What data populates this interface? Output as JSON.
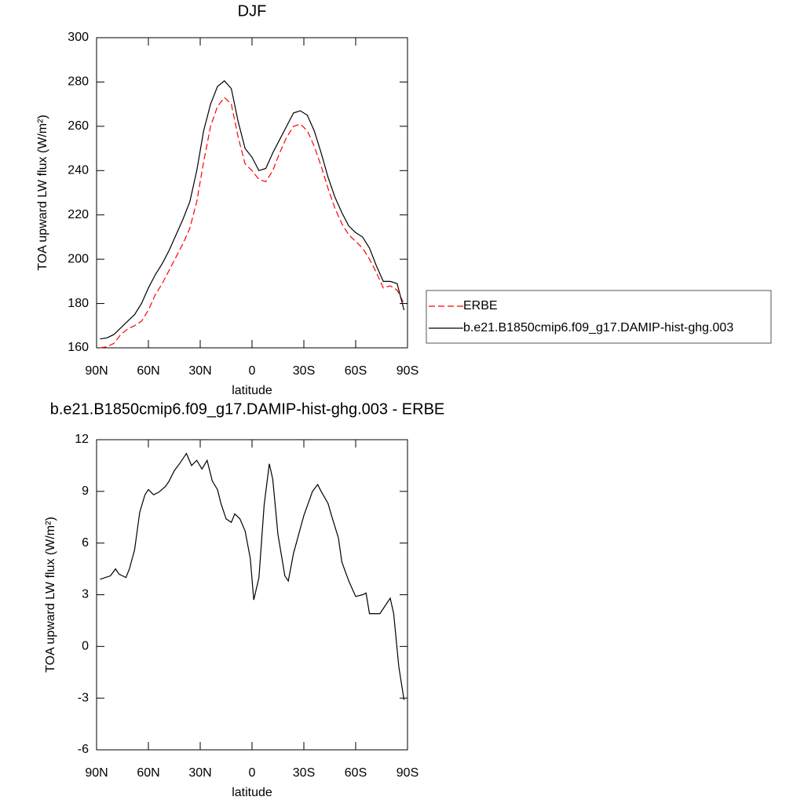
{
  "chart_data": [
    {
      "type": "line",
      "title": "DJF",
      "xlabel": "latitude",
      "ylabel": "TOA upward LW flux (W/m²)",
      "x": [
        88,
        84,
        80,
        76,
        72,
        68,
        64,
        60,
        56,
        52,
        48,
        44,
        40,
        36,
        32,
        28,
        24,
        20,
        16,
        12,
        8,
        4,
        0,
        -4,
        -8,
        -12,
        -16,
        -20,
        -24,
        -28,
        -32,
        -36,
        -40,
        -44,
        -48,
        -52,
        -56,
        -60,
        -64,
        -68,
        -72,
        -76,
        -80,
        -84,
        -88
      ],
      "series": [
        {
          "name": "ERBE",
          "color": "#ff0000",
          "dash": true,
          "values": [
            160,
            160.5,
            162,
            166,
            168.5,
            170,
            172,
            177,
            184,
            189,
            195,
            201,
            207,
            214,
            226,
            244,
            260,
            269,
            273,
            270,
            255,
            243,
            240,
            236,
            235,
            240,
            248,
            255,
            260,
            261,
            258,
            251,
            242,
            232,
            223,
            216,
            211,
            208,
            205,
            200,
            194,
            187,
            188,
            186,
            180
          ]
        },
        {
          "name": "b.e21.B1850cmip6.f09_g17.DAMIP-hist-ghg.003",
          "color": "#000000",
          "dash": false,
          "values": [
            164,
            164.5,
            166,
            169,
            172,
            175,
            180,
            187,
            193,
            198,
            204,
            211,
            218,
            226,
            240,
            258,
            270,
            278,
            280.5,
            277,
            262,
            250,
            246,
            240,
            241,
            248,
            254,
            260,
            266,
            267,
            265,
            258,
            248,
            237,
            228,
            221,
            215,
            212,
            210,
            205,
            197,
            190,
            190,
            189,
            177
          ]
        }
      ],
      "xlim": [
        90,
        -90
      ],
      "xticks": [
        {
          "value": 90,
          "label": "90N"
        },
        {
          "value": 60,
          "label": "60N"
        },
        {
          "value": 30,
          "label": "30N"
        },
        0,
        {
          "value": -30,
          "label": "30S"
        },
        {
          "value": -60,
          "label": "60S"
        },
        {
          "value": -90,
          "label": "90S"
        }
      ],
      "ylim": [
        160,
        300
      ],
      "yticks": [
        160,
        180,
        200,
        220,
        240,
        260,
        280,
        300
      ],
      "legend": "right"
    },
    {
      "type": "line",
      "title": "b.e21.B1850cmip6.f09_g17.DAMIP-hist-ghg.003 - ERBE",
      "xlabel": "latitude",
      "ylabel": "TOA upward LW flux (W/m²)",
      "x": [
        88,
        82,
        79,
        77,
        73,
        71,
        68,
        65,
        62,
        60,
        57,
        54,
        50,
        48,
        45,
        42,
        38,
        35,
        32,
        29,
        26,
        23,
        20,
        18,
        15,
        12,
        10,
        7,
        4,
        1,
        -1,
        -4,
        -7,
        -10,
        -12,
        -15,
        -19,
        -21,
        -24,
        -30,
        -35,
        -38,
        -40,
        -44,
        -46,
        -50,
        -52,
        -56,
        -60,
        -64,
        -66,
        -68,
        -74,
        -80,
        -82,
        -85,
        -88
      ],
      "series": [
        {
          "name": "difference",
          "color": "#000000",
          "dash": false,
          "values": [
            3.9,
            4.1,
            4.5,
            4.2,
            4.0,
            4.5,
            5.6,
            7.8,
            8.8,
            9.1,
            8.8,
            8.95,
            9.3,
            9.6,
            10.2,
            10.6,
            11.2,
            10.5,
            10.8,
            10.3,
            10.8,
            9.6,
            9.1,
            8.3,
            7.4,
            7.2,
            7.7,
            7.4,
            6.7,
            5.1,
            2.7,
            4.0,
            8.2,
            10.6,
            9.7,
            6.5,
            4.1,
            3.8,
            5.4,
            7.6,
            9.0,
            9.4,
            9.0,
            8.3,
            7.6,
            6.3,
            4.9,
            3.8,
            2.9,
            3.0,
            3.1,
            1.9,
            1.9,
            2.8,
            1.9,
            -1.2,
            -3.1
          ]
        }
      ],
      "xlim": [
        90,
        -90
      ],
      "xticks": [
        {
          "value": 90,
          "label": "90N"
        },
        {
          "value": 60,
          "label": "60N"
        },
        {
          "value": 30,
          "label": "30N"
        },
        0,
        {
          "value": -30,
          "label": "30S"
        },
        {
          "value": -60,
          "label": "60S"
        },
        {
          "value": -90,
          "label": "90S"
        }
      ],
      "ylim": [
        -6,
        12
      ],
      "yticks": [
        -6,
        -3,
        0,
        3,
        6,
        9,
        12
      ]
    }
  ]
}
